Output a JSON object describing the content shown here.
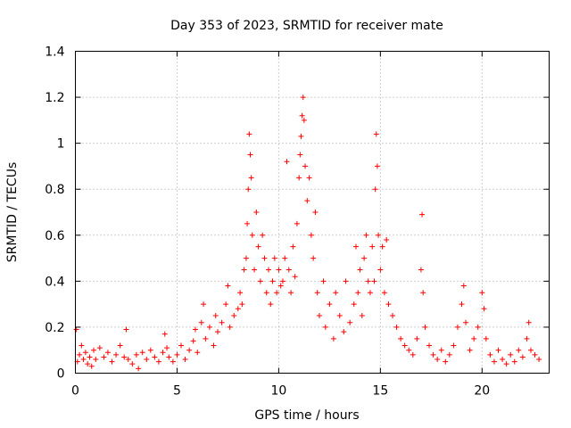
{
  "chart_data": {
    "type": "scatter",
    "title": "Day 353 of 2023, SRMTID for receiver mate",
    "xlabel": "GPS time / hours",
    "ylabel": "SRMTID / TECUs",
    "xlim": [
      0,
      23.3
    ],
    "ylim": [
      0,
      1.4
    ],
    "xticks": [
      0,
      5,
      10,
      15,
      20
    ],
    "xtick_labels": [
      "0",
      "5",
      "10",
      "15",
      "20"
    ],
    "yticks": [
      0,
      0.2,
      0.4,
      0.6,
      0.8,
      1,
      1.2,
      1.4
    ],
    "ytick_labels": [
      "0",
      "0.2",
      "0.4",
      "0.6",
      "0.8",
      "1",
      "1.2",
      "1.4"
    ],
    "grid": true,
    "marker": "+",
    "color": "#ff0000",
    "series": [
      {
        "name": "SRMTID",
        "points": [
          [
            0.05,
            0.19
          ],
          [
            0.1,
            0.05
          ],
          [
            0.2,
            0.08
          ],
          [
            0.3,
            0.12
          ],
          [
            0.4,
            0.06
          ],
          [
            0.5,
            0.09
          ],
          [
            0.6,
            0.04
          ],
          [
            0.7,
            0.07
          ],
          [
            0.8,
            0.03
          ],
          [
            0.9,
            0.1
          ],
          [
            1.0,
            0.06
          ],
          [
            1.2,
            0.11
          ],
          [
            1.4,
            0.07
          ],
          [
            1.6,
            0.09
          ],
          [
            1.8,
            0.05
          ],
          [
            2.0,
            0.08
          ],
          [
            2.2,
            0.12
          ],
          [
            2.4,
            0.07
          ],
          [
            2.5,
            0.19
          ],
          [
            2.6,
            0.06
          ],
          [
            2.8,
            0.04
          ],
          [
            3.0,
            0.08
          ],
          [
            3.1,
            0.02
          ],
          [
            3.3,
            0.09
          ],
          [
            3.5,
            0.06
          ],
          [
            3.7,
            0.1
          ],
          [
            3.9,
            0.07
          ],
          [
            4.1,
            0.05
          ],
          [
            4.3,
            0.09
          ],
          [
            4.4,
            0.17
          ],
          [
            4.5,
            0.11
          ],
          [
            4.6,
            0.07
          ],
          [
            4.8,
            0.05
          ],
          [
            5.0,
            0.08
          ],
          [
            5.2,
            0.12
          ],
          [
            5.4,
            0.06
          ],
          [
            5.6,
            0.1
          ],
          [
            5.8,
            0.14
          ],
          [
            5.9,
            0.19
          ],
          [
            6.0,
            0.09
          ],
          [
            6.2,
            0.22
          ],
          [
            6.3,
            0.3
          ],
          [
            6.4,
            0.15
          ],
          [
            6.6,
            0.2
          ],
          [
            6.8,
            0.12
          ],
          [
            6.9,
            0.25
          ],
          [
            7.0,
            0.18
          ],
          [
            7.2,
            0.22
          ],
          [
            7.4,
            0.3
          ],
          [
            7.5,
            0.38
          ],
          [
            7.6,
            0.2
          ],
          [
            7.8,
            0.25
          ],
          [
            8.0,
            0.28
          ],
          [
            8.1,
            0.35
          ],
          [
            8.2,
            0.3
          ],
          [
            8.3,
            0.45
          ],
          [
            8.4,
            0.5
          ],
          [
            8.45,
            0.65
          ],
          [
            8.5,
            0.8
          ],
          [
            8.55,
            1.04
          ],
          [
            8.6,
            0.95
          ],
          [
            8.65,
            0.85
          ],
          [
            8.7,
            0.6
          ],
          [
            8.8,
            0.45
          ],
          [
            8.9,
            0.7
          ],
          [
            9.0,
            0.55
          ],
          [
            9.1,
            0.4
          ],
          [
            9.2,
            0.6
          ],
          [
            9.3,
            0.5
          ],
          [
            9.4,
            0.35
          ],
          [
            9.5,
            0.45
          ],
          [
            9.6,
            0.3
          ],
          [
            9.7,
            0.4
          ],
          [
            9.8,
            0.5
          ],
          [
            9.9,
            0.35
          ],
          [
            10.0,
            0.45
          ],
          [
            10.1,
            0.38
          ],
          [
            10.2,
            0.4
          ],
          [
            10.3,
            0.5
          ],
          [
            10.4,
            0.92
          ],
          [
            10.5,
            0.45
          ],
          [
            10.6,
            0.35
          ],
          [
            10.7,
            0.55
          ],
          [
            10.8,
            0.42
          ],
          [
            10.9,
            0.65
          ],
          [
            11.0,
            0.85
          ],
          [
            11.05,
            0.95
          ],
          [
            11.1,
            1.03
          ],
          [
            11.15,
            1.12
          ],
          [
            11.2,
            1.2
          ],
          [
            11.25,
            1.1
          ],
          [
            11.3,
            0.9
          ],
          [
            11.4,
            0.75
          ],
          [
            11.5,
            0.85
          ],
          [
            11.6,
            0.6
          ],
          [
            11.7,
            0.5
          ],
          [
            11.8,
            0.7
          ],
          [
            11.9,
            0.35
          ],
          [
            12.0,
            0.25
          ],
          [
            12.2,
            0.4
          ],
          [
            12.3,
            0.2
          ],
          [
            12.5,
            0.3
          ],
          [
            12.7,
            0.15
          ],
          [
            12.8,
            0.35
          ],
          [
            13.0,
            0.25
          ],
          [
            13.2,
            0.18
          ],
          [
            13.3,
            0.4
          ],
          [
            13.5,
            0.22
          ],
          [
            13.7,
            0.3
          ],
          [
            13.8,
            0.55
          ],
          [
            13.9,
            0.35
          ],
          [
            14.0,
            0.45
          ],
          [
            14.1,
            0.25
          ],
          [
            14.2,
            0.5
          ],
          [
            14.3,
            0.6
          ],
          [
            14.4,
            0.4
          ],
          [
            14.5,
            0.35
          ],
          [
            14.6,
            0.55
          ],
          [
            14.7,
            0.4
          ],
          [
            14.75,
            0.8
          ],
          [
            14.8,
            1.04
          ],
          [
            14.85,
            0.9
          ],
          [
            14.9,
            0.6
          ],
          [
            15.0,
            0.45
          ],
          [
            15.1,
            0.55
          ],
          [
            15.2,
            0.35
          ],
          [
            15.3,
            0.58
          ],
          [
            15.4,
            0.3
          ],
          [
            15.6,
            0.25
          ],
          [
            15.8,
            0.2
          ],
          [
            16.0,
            0.15
          ],
          [
            16.2,
            0.12
          ],
          [
            16.4,
            0.1
          ],
          [
            16.6,
            0.08
          ],
          [
            16.8,
            0.15
          ],
          [
            17.0,
            0.45
          ],
          [
            17.05,
            0.69
          ],
          [
            17.1,
            0.35
          ],
          [
            17.2,
            0.2
          ],
          [
            17.4,
            0.12
          ],
          [
            17.6,
            0.08
          ],
          [
            17.8,
            0.06
          ],
          [
            18.0,
            0.1
          ],
          [
            18.2,
            0.05
          ],
          [
            18.4,
            0.08
          ],
          [
            18.6,
            0.12
          ],
          [
            18.8,
            0.2
          ],
          [
            19.0,
            0.3
          ],
          [
            19.1,
            0.38
          ],
          [
            19.2,
            0.22
          ],
          [
            19.4,
            0.1
          ],
          [
            19.6,
            0.15
          ],
          [
            19.8,
            0.2
          ],
          [
            20.0,
            0.35
          ],
          [
            20.1,
            0.28
          ],
          [
            20.2,
            0.15
          ],
          [
            20.4,
            0.08
          ],
          [
            20.6,
            0.05
          ],
          [
            20.8,
            0.1
          ],
          [
            21.0,
            0.06
          ],
          [
            21.2,
            0.04
          ],
          [
            21.4,
            0.08
          ],
          [
            21.6,
            0.05
          ],
          [
            21.8,
            0.1
          ],
          [
            22.0,
            0.07
          ],
          [
            22.2,
            0.15
          ],
          [
            22.3,
            0.22
          ],
          [
            22.4,
            0.1
          ],
          [
            22.6,
            0.08
          ],
          [
            22.8,
            0.06
          ]
        ]
      }
    ]
  }
}
